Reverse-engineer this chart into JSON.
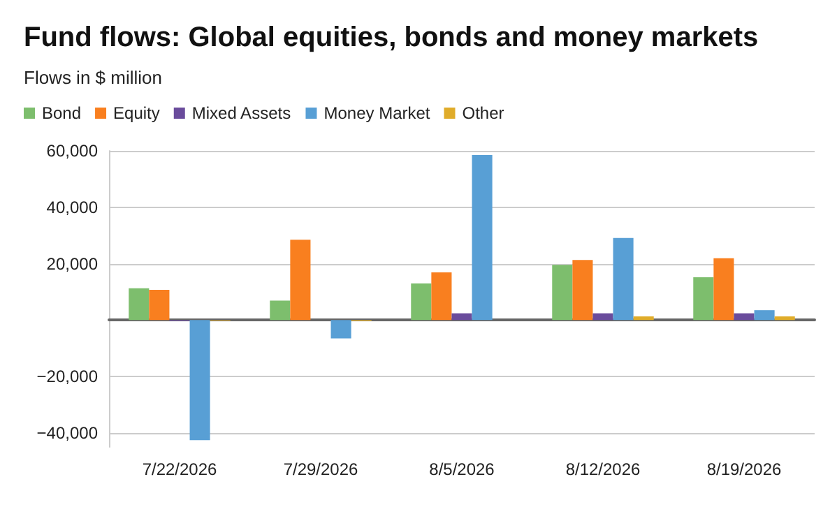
{
  "chart_data": {
    "type": "bar",
    "title": "Fund flows: Global equities, bonds and money markets",
    "subtitle": "Flows in $ million",
    "categories": [
      "7/22/2026",
      "7/29/2026",
      "8/5/2026",
      "8/12/2026",
      "8/19/2026"
    ],
    "series": [
      {
        "name": "Bond",
        "color": "#7dbe6d",
        "values": [
          11300,
          6900,
          13000,
          19600,
          15200
        ]
      },
      {
        "name": "Equity",
        "color": "#f97f1f",
        "values": [
          10700,
          28500,
          16900,
          21300,
          21900
        ]
      },
      {
        "name": "Mixed Assets",
        "color": "#6a4c9c",
        "values": [
          -300,
          0,
          2400,
          2400,
          2400
        ]
      },
      {
        "name": "Money Market",
        "color": "#589fd5",
        "values": [
          -42600,
          -6500,
          58500,
          29100,
          3500
        ]
      },
      {
        "name": "Other",
        "color": "#e0ac2a",
        "values": [
          -200,
          -300,
          0,
          1300,
          1300
        ]
      }
    ],
    "ylim": [
      -45000,
      60000
    ],
    "yticks": [
      {
        "value": -40000,
        "label": "−40,000"
      },
      {
        "value": -20000,
        "label": "−20,000"
      },
      {
        "value": 20000,
        "label": "20,000"
      },
      {
        "value": 40000,
        "label": "40,000"
      },
      {
        "value": 60000,
        "label": "60,000"
      }
    ],
    "grid": "y",
    "legend": "top left"
  }
}
